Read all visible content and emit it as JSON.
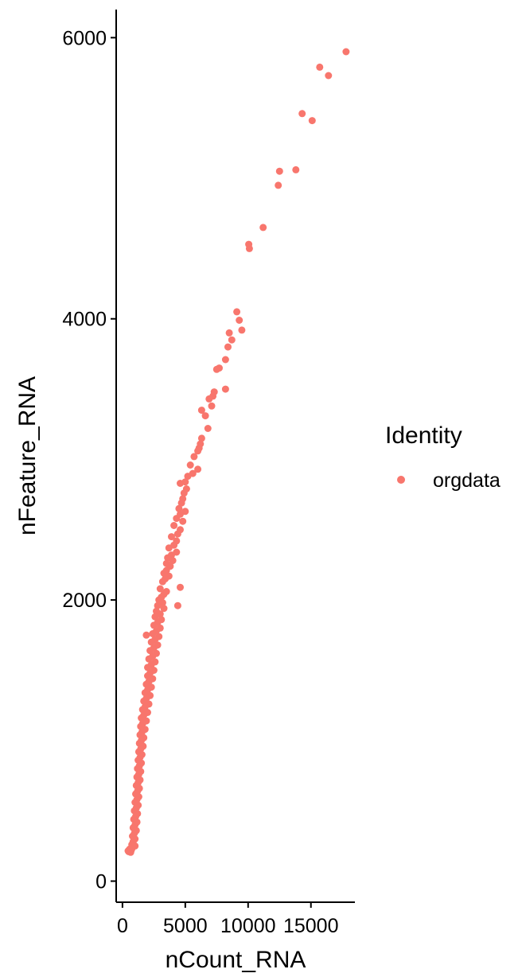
{
  "chart_data": {
    "type": "scatter",
    "xlabel": "nCount_RNA",
    "ylabel": "nFeature_RNA",
    "xlim": [
      -500,
      18500
    ],
    "ylim": [
      -150,
      6200
    ],
    "x_ticks": [
      0,
      5000,
      10000,
      15000
    ],
    "x_tick_labels": [
      "0",
      "5000",
      "10000",
      "15000"
    ],
    "y_ticks": [
      0,
      2000,
      4000,
      6000
    ],
    "y_tick_labels": [
      "0",
      "2000",
      "4000",
      "6000"
    ],
    "grid": false,
    "legend": {
      "title": "Identity",
      "placement": "right"
    },
    "series": [
      {
        "name": "orgdata",
        "color": "#F8766D",
        "points": [
          [
            17800,
            5900
          ],
          [
            16400,
            5730
          ],
          [
            15700,
            5790
          ],
          [
            15100,
            5410
          ],
          [
            14300,
            5460
          ],
          [
            13800,
            5060
          ],
          [
            12500,
            5050
          ],
          [
            12400,
            4950
          ],
          [
            11200,
            4650
          ],
          [
            10050,
            4530
          ],
          [
            10100,
            4500
          ],
          [
            9100,
            4050
          ],
          [
            9300,
            3990
          ],
          [
            9500,
            3920
          ],
          [
            8500,
            3900
          ],
          [
            8700,
            3850
          ],
          [
            8400,
            3800
          ],
          [
            8200,
            3710
          ],
          [
            7700,
            3650
          ],
          [
            7500,
            3640
          ],
          [
            8200,
            3500
          ],
          [
            7300,
            3480
          ],
          [
            7200,
            3450
          ],
          [
            6900,
            3430
          ],
          [
            7100,
            3380
          ],
          [
            6300,
            3350
          ],
          [
            6600,
            3310
          ],
          [
            6800,
            3220
          ],
          [
            6300,
            3150
          ],
          [
            6200,
            3110
          ],
          [
            6100,
            3080
          ],
          [
            6000,
            3060
          ],
          [
            5700,
            3020
          ],
          [
            5400,
            2960
          ],
          [
            6000,
            2930
          ],
          [
            5600,
            2900
          ],
          [
            5200,
            2880
          ],
          [
            5000,
            2840
          ],
          [
            4600,
            2830
          ],
          [
            5100,
            2790
          ],
          [
            4900,
            2760
          ],
          [
            4800,
            2720
          ],
          [
            4700,
            2690
          ],
          [
            4500,
            2650
          ],
          [
            5000,
            2630
          ],
          [
            4600,
            2610
          ],
          [
            4300,
            2580
          ],
          [
            4800,
            2560
          ],
          [
            4100,
            2530
          ],
          [
            4600,
            2500
          ],
          [
            4400,
            2470
          ],
          [
            3900,
            2450
          ],
          [
            4300,
            2420
          ],
          [
            4100,
            2390
          ],
          [
            3700,
            2370
          ],
          [
            4300,
            2340
          ],
          [
            3900,
            2320
          ],
          [
            3600,
            2300
          ],
          [
            4000,
            2280
          ],
          [
            3500,
            2260
          ],
          [
            3800,
            2240
          ],
          [
            3500,
            2210
          ],
          [
            3300,
            2190
          ],
          [
            3700,
            2170
          ],
          [
            3400,
            2150
          ],
          [
            3200,
            2130
          ],
          [
            4600,
            2090
          ],
          [
            3000,
            2080
          ],
          [
            3500,
            2060
          ],
          [
            3300,
            2040
          ],
          [
            3100,
            2020
          ],
          [
            2900,
            2000
          ],
          [
            4400,
            1960
          ],
          [
            3200,
            1980
          ],
          [
            2800,
            1960
          ],
          [
            3300,
            1940
          ],
          [
            2700,
            1920
          ],
          [
            3000,
            1900
          ],
          [
            2600,
            1880
          ],
          [
            3100,
            1860
          ],
          [
            2800,
            1840
          ],
          [
            2500,
            1820
          ],
          [
            3000,
            1800
          ],
          [
            2700,
            1780
          ],
          [
            2400,
            1760
          ],
          [
            1900,
            1750
          ],
          [
            2900,
            1740
          ],
          [
            2600,
            1720
          ],
          [
            2300,
            1700
          ],
          [
            2800,
            1680
          ],
          [
            2500,
            1660
          ],
          [
            2200,
            1640
          ],
          [
            2700,
            1620
          ],
          [
            2400,
            1600
          ],
          [
            2100,
            1580
          ],
          [
            2600,
            1560
          ],
          [
            2300,
            1540
          ],
          [
            2000,
            1520
          ],
          [
            2500,
            1500
          ],
          [
            2200,
            1480
          ],
          [
            2000,
            1460
          ],
          [
            2400,
            1440
          ],
          [
            2100,
            1420
          ],
          [
            1900,
            1400
          ],
          [
            2300,
            1380
          ],
          [
            2000,
            1360
          ],
          [
            1800,
            1340
          ],
          [
            2200,
            1320
          ],
          [
            1900,
            1300
          ],
          [
            1700,
            1280
          ],
          [
            2100,
            1260
          ],
          [
            1800,
            1240
          ],
          [
            1600,
            1220
          ],
          [
            2000,
            1200
          ],
          [
            1700,
            1180
          ],
          [
            1500,
            1160
          ],
          [
            1900,
            1140
          ],
          [
            1600,
            1120
          ],
          [
            1450,
            1100
          ],
          [
            1800,
            1080
          ],
          [
            1550,
            1060
          ],
          [
            1400,
            1040
          ],
          [
            1700,
            1020
          ],
          [
            1500,
            1000
          ],
          [
            1350,
            980
          ],
          [
            1650,
            960
          ],
          [
            1450,
            940
          ],
          [
            1300,
            920
          ],
          [
            1550,
            900
          ],
          [
            1400,
            880
          ],
          [
            1250,
            860
          ],
          [
            1500,
            840
          ],
          [
            1350,
            820
          ],
          [
            1200,
            800
          ],
          [
            1450,
            780
          ],
          [
            1300,
            760
          ],
          [
            1150,
            740
          ],
          [
            1400,
            720
          ],
          [
            1250,
            700
          ],
          [
            1100,
            680
          ],
          [
            1350,
            660
          ],
          [
            1200,
            640
          ],
          [
            1050,
            620
          ],
          [
            1300,
            600
          ],
          [
            1150,
            580
          ],
          [
            1000,
            560
          ],
          [
            1250,
            540
          ],
          [
            1100,
            520
          ],
          [
            950,
            500
          ],
          [
            1200,
            480
          ],
          [
            1050,
            460
          ],
          [
            900,
            440
          ],
          [
            1150,
            420
          ],
          [
            1000,
            400
          ],
          [
            850,
            380
          ],
          [
            1100,
            360
          ],
          [
            950,
            340
          ],
          [
            800,
            320
          ],
          [
            1000,
            300
          ],
          [
            850,
            280
          ],
          [
            750,
            260
          ],
          [
            1000,
            250
          ],
          [
            800,
            240
          ],
          [
            600,
            230
          ],
          [
            700,
            220
          ],
          [
            500,
            210
          ],
          [
            650,
            205
          ],
          [
            450,
            215
          ],
          [
            550,
            225
          ],
          [
            750,
            230
          ]
        ]
      }
    ]
  }
}
